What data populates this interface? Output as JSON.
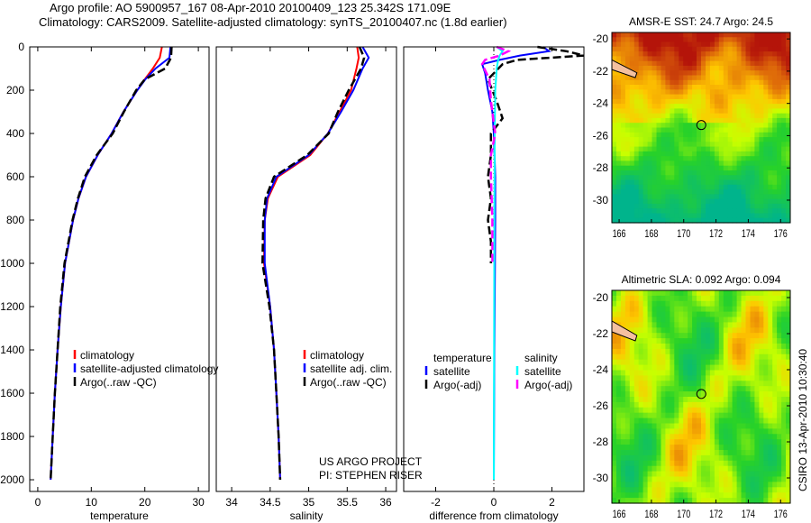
{
  "title": {
    "line1": "Argo profile: AO 5900957_167 08-Apr-2010 20100409_123 25.342S 171.09E",
    "line2": "Climatology: CARS2009. Satellite-adjusted climatology: synTS_20100407.nc (1.8d earlier)"
  },
  "credit": "CSIRO 13-Apr-2010 10:30:40",
  "project": {
    "line1": "US ARGO PROJECT",
    "line2": "PI: STEPHEN RISER"
  },
  "colors": {
    "clim": "#ff0000",
    "sat": "#0000ff",
    "argo": "#000000",
    "sal_sat": "#00ffff",
    "sal_argo": "#ff00ff"
  },
  "chart_data": [
    {
      "type": "line",
      "xlabel": "temperature",
      "ylabel": "",
      "xlim": [
        -1.5,
        32
      ],
      "ylim": [
        2054,
        0
      ],
      "xticks": [
        0,
        10,
        20,
        30
      ],
      "yticks": [
        0,
        200,
        400,
        600,
        800,
        1000,
        1200,
        1400,
        1600,
        1800,
        2000
      ],
      "legend": [
        "climatology",
        "satellite-adjusted climatology",
        "Argo(..raw -QC)"
      ],
      "legend_placement": "lower-right",
      "depth": [
        0,
        50,
        100,
        150,
        200,
        300,
        400,
        500,
        600,
        700,
        800,
        1000,
        1200,
        1400,
        1600,
        1800,
        2000
      ],
      "series": [
        {
          "name": "climatology",
          "color_key": "clim",
          "dash": false,
          "values": [
            23.2,
            22.8,
            21.5,
            20,
            18.6,
            16,
            13.8,
            11.2,
            9,
            7.6,
            6.6,
            5.1,
            4.3,
            3.7,
            3.2,
            2.8,
            2.4
          ]
        },
        {
          "name": "satellite-adjusted climatology",
          "color_key": "sat",
          "dash": false,
          "values": [
            24.8,
            24.6,
            22,
            20.1,
            18.6,
            16,
            13.8,
            11.2,
            9,
            7.6,
            6.6,
            5.1,
            4.3,
            3.7,
            3.2,
            2.8,
            2.4
          ]
        },
        {
          "name": "Argo(..raw -QC)",
          "color_key": "argo",
          "dash": true,
          "values": [
            25,
            24.9,
            23.8,
            20,
            18.4,
            16.1,
            14,
            11,
            8.8,
            7.5,
            6.5,
            5,
            4.2,
            3.7,
            3.2,
            2.8,
            2.4
          ]
        }
      ]
    },
    {
      "type": "line",
      "xlabel": "salinity",
      "ylabel": "",
      "xlim": [
        33.8,
        36.14
      ],
      "ylim": [
        2054,
        0
      ],
      "xticks": [
        34,
        34.5,
        35,
        35.5,
        36
      ],
      "legend": [
        "climatology",
        "satellite adj. clim.",
        "Argo(..raw -QC)"
      ],
      "legend_placement": "lower-right",
      "depth": [
        0,
        50,
        100,
        200,
        300,
        400,
        500,
        600,
        700,
        800,
        1000,
        1200,
        1400,
        1600,
        1800,
        2000
      ],
      "series": [
        {
          "name": "climatology",
          "color_key": "clim",
          "dash": false,
          "values": [
            35.63,
            35.65,
            35.62,
            35.55,
            35.4,
            35.25,
            35.02,
            34.6,
            34.47,
            34.43,
            34.42,
            34.5,
            34.55,
            34.58,
            34.61,
            34.63
          ]
        },
        {
          "name": "satellite adj. clim.",
          "color_key": "sat",
          "dash": false,
          "values": [
            35.7,
            35.78,
            35.7,
            35.58,
            35.42,
            35.25,
            35.0,
            34.58,
            34.46,
            34.43,
            34.43,
            34.5,
            34.55,
            34.58,
            34.61,
            34.63
          ]
        },
        {
          "name": "Argo(..raw -QC)",
          "color_key": "argo",
          "dash": true,
          "values": [
            35.66,
            35.72,
            35.68,
            35.52,
            35.38,
            35.26,
            34.98,
            34.55,
            34.44,
            34.41,
            34.4,
            34.49,
            34.55,
            34.58,
            34.61,
            34.63
          ]
        }
      ]
    },
    {
      "type": "line",
      "xlabel": "difference from climatology",
      "ylabel": "",
      "xlim": [
        -3.1,
        3.1
      ],
      "ylim": [
        2054,
        0
      ],
      "xticks": [
        -2,
        0,
        2
      ],
      "legend_headers": [
        "temperature",
        "salinity"
      ],
      "legend": [
        "satellite",
        "Argo(-adj)",
        "satellite",
        "Argo(-adj)"
      ],
      "legend_placement": "lower-center",
      "series": [
        {
          "name": "temperature satellite",
          "color_key": "sat",
          "dash": false,
          "depth": [
            0,
            20,
            40,
            60,
            80,
            120,
            200,
            300,
            400,
            600,
            800,
            1000,
            1400,
            2000
          ],
          "values": [
            1.7,
            1.9,
            0.9,
            0.2,
            -0.4,
            -0.3,
            -0.2,
            -0.05,
            0,
            0.05,
            0.05,
            0.04,
            0.02,
            0
          ]
        },
        {
          "name": "temperature Argo(-adj)",
          "color_key": "argo",
          "dash": true,
          "depth": [
            0,
            20,
            40,
            60,
            80,
            150,
            250,
            330,
            400,
            500,
            600,
            700,
            800,
            900,
            1000
          ],
          "values": [
            1.5,
            2.5,
            3.1,
            0.8,
            0.3,
            -0.2,
            0.1,
            0.3,
            -0.1,
            -0.1,
            -0.2,
            -0.1,
            -0.2,
            -0.1,
            -0.1
          ]
        },
        {
          "name": "salinity satellite",
          "color_key": "sal_sat",
          "dash": false,
          "depth": [
            0,
            20,
            40,
            60,
            100,
            200,
            400,
            800,
            1400,
            2000
          ],
          "values": [
            0.1,
            0.3,
            0.2,
            0.15,
            0.1,
            0.05,
            0.03,
            0.02,
            0.01,
            0
          ]
        },
        {
          "name": "salinity Argo(-adj)",
          "color_key": "sal_argo",
          "dash": true,
          "depth": [
            0,
            20,
            40,
            60,
            80,
            150,
            250,
            400,
            500,
            600,
            800,
            1000
          ],
          "values": [
            0.1,
            0.5,
            0.2,
            -0.3,
            -0.4,
            -0.15,
            -0.1,
            0.05,
            -0.1,
            -0.1,
            -0.05,
            -0.05
          ]
        }
      ]
    },
    {
      "type": "heatmap",
      "title": "AMSR-E SST: 24.7 Argo: 24.5",
      "xlim": [
        165.55,
        176.6
      ],
      "ylim": [
        -31.4,
        -19.6
      ],
      "xticks": [
        166,
        168,
        170,
        172,
        174,
        176
      ],
      "yticks": [
        -20,
        -22,
        -24,
        -26,
        -28,
        -30
      ],
      "marker": {
        "lon": 171.09,
        "lat": -25.342
      }
    },
    {
      "type": "heatmap",
      "title": "Altimetric SLA: 0.092 Argo: 0.094",
      "xlim": [
        165.55,
        176.6
      ],
      "ylim": [
        -31.4,
        -19.6
      ],
      "xticks": [
        166,
        168,
        170,
        172,
        174,
        176
      ],
      "yticks": [
        -20,
        -22,
        -24,
        -26,
        -28,
        -30
      ],
      "marker": {
        "lon": 171.09,
        "lat": -25.342
      }
    }
  ]
}
